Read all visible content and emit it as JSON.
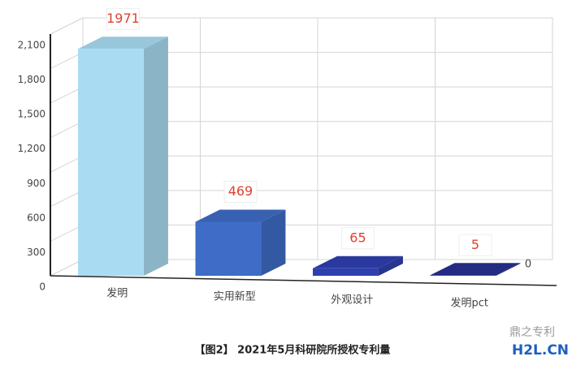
{
  "chart_data": {
    "type": "bar3d",
    "categories": [
      "发明",
      "实用新型",
      "外观设计",
      "发明pct"
    ],
    "series": [
      {
        "values": [
          1971,
          469,
          65,
          5
        ],
        "colors": [
          "#a9dcf2",
          "#3e6cc6",
          "#2f3fb0",
          "#283090"
        ]
      }
    ],
    "ylim": [
      0,
      2100
    ],
    "yticks": [
      0,
      300,
      600,
      900,
      {
        "value": 1200,
        "label": "1,200"
      },
      {
        "value": 1500,
        "label": "1,500"
      },
      {
        "value": 1800,
        "label": "1,800"
      },
      {
        "value": 2100,
        "label": "2,100"
      }
    ],
    "depth_ticks": [
      0
    ],
    "grid": true,
    "caption": "【图2】 2021年5月科研院所授权专利量",
    "watermark": {
      "account": "鼎之专利",
      "site": "H2L.CN"
    }
  }
}
